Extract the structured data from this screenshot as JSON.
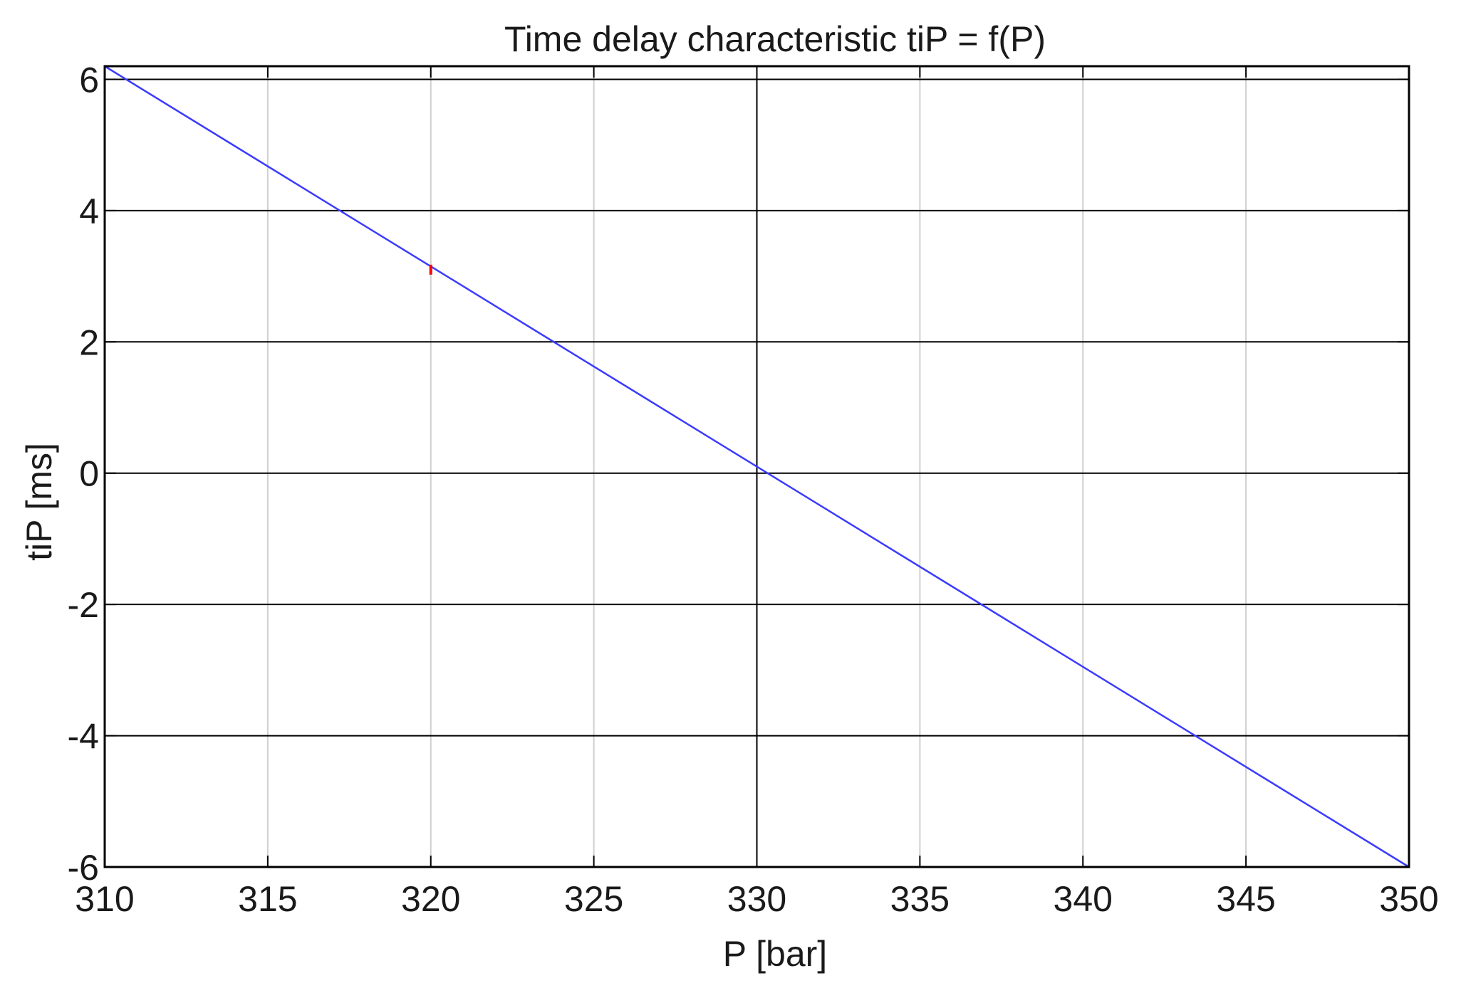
{
  "chart_data": {
    "type": "line",
    "title": "Time delay characteristic tiP = f(P)",
    "xlabel": "P [bar]",
    "ylabel": "tiP [ms]",
    "xlim": [
      310,
      350
    ],
    "ylim": [
      -6,
      6.2
    ],
    "xticks": [
      310,
      315,
      320,
      325,
      330,
      335,
      340,
      345,
      350
    ],
    "yticks": [
      -6,
      -4,
      -2,
      0,
      2,
      4,
      6
    ],
    "xtick_labels": [
      "310",
      "315",
      "320",
      "325",
      "330",
      "335",
      "340",
      "345",
      "350"
    ],
    "ytick_labels": [
      "-6",
      "-4",
      "-2",
      "0",
      "2",
      "4",
      "6"
    ],
    "grid": true,
    "legend": "none",
    "series": [
      {
        "color": "#3b3bff",
        "x": [
          310,
          350
        ],
        "y": [
          6.2,
          -6
        ]
      }
    ],
    "markers": [
      {
        "color": "#ff0000",
        "x": 320,
        "y": 3.1
      }
    ]
  }
}
